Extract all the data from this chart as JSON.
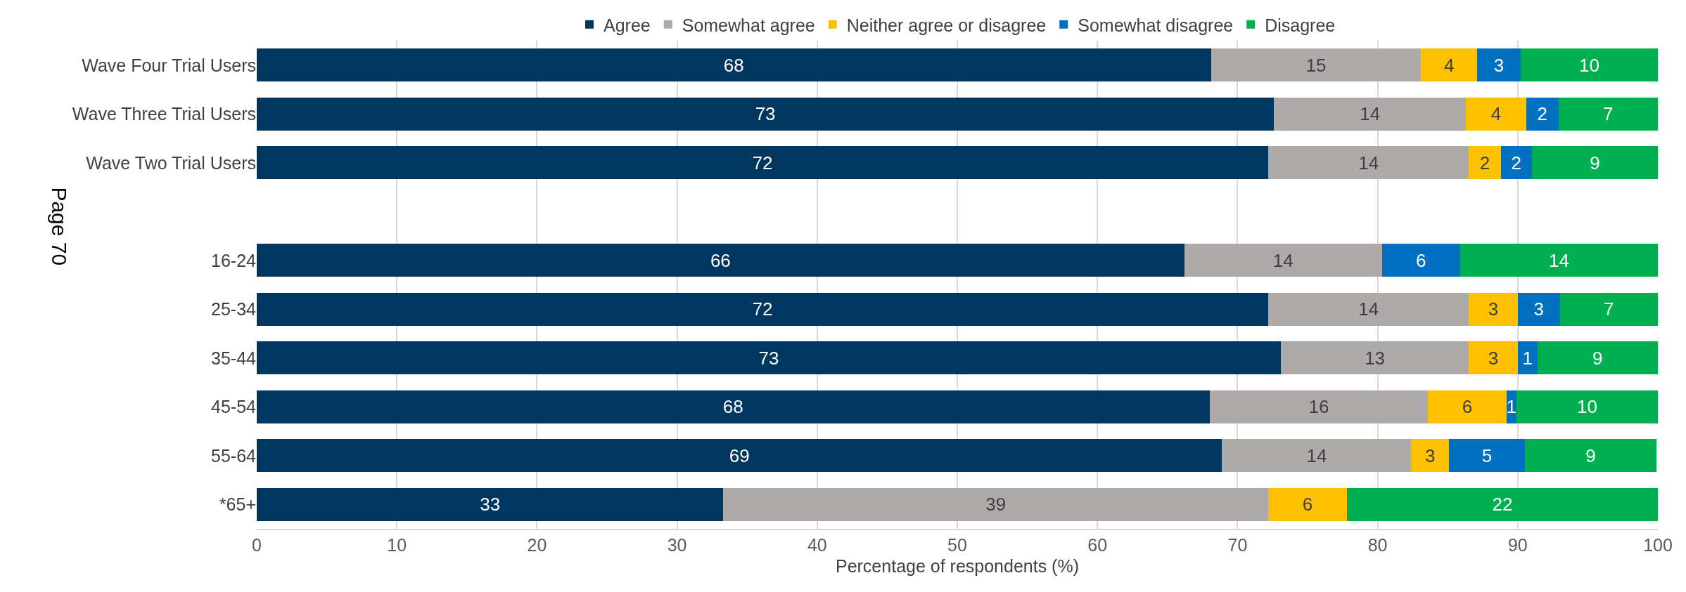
{
  "chart_data": {
    "type": "bar",
    "orientation": "horizontal",
    "stacked": true,
    "categories": [
      "Wave Four Trial Users",
      "Wave Three Trial Users",
      "Wave Two Trial Users",
      null,
      "16-24",
      "25-34",
      "35-44",
      "45-54",
      "55-64",
      "*65+"
    ],
    "series": [
      {
        "name": "Agree",
        "color": "#003761",
        "values": [
          68.1,
          72.6,
          72.2,
          null,
          66.2,
          72.2,
          73.1,
          68.0,
          68.9,
          33.3
        ],
        "value_labels": [
          "68",
          "73",
          "72",
          null,
          "66",
          "72",
          "73",
          "68",
          "69",
          "33"
        ]
      },
      {
        "name": "Somewhat agree",
        "color": "#aeaaaa",
        "values": [
          15.0,
          13.7,
          14.3,
          null,
          14.1,
          14.3,
          13.4,
          15.6,
          13.5,
          38.9
        ],
        "value_labels": [
          "15",
          "14",
          "14",
          null,
          "14",
          "14",
          "13",
          "16",
          "14",
          "39"
        ]
      },
      {
        "name": "Neither agree or disagree",
        "color": "#ffc000",
        "values": [
          4.0,
          4.3,
          2.3,
          null,
          null,
          3.5,
          3.5,
          5.6,
          2.7,
          5.6
        ],
        "value_labels": [
          "4",
          "4",
          "2",
          null,
          null,
          "3",
          "3",
          "6",
          "3",
          "6"
        ]
      },
      {
        "name": "Somewhat disagree",
        "color": "#0070c0",
        "values": [
          3.1,
          2.3,
          2.2,
          null,
          5.6,
          3.0,
          1.4,
          0.7,
          5.4,
          null
        ],
        "value_labels": [
          "3",
          "2",
          "2",
          null,
          "6",
          "3",
          "1",
          "1",
          "5",
          null
        ]
      },
      {
        "name": "Disagree",
        "color": "#00b050",
        "values": [
          9.8,
          7.1,
          9.0,
          null,
          14.1,
          7.0,
          8.6,
          10.1,
          9.4,
          22.2
        ],
        "value_labels": [
          "10",
          "7",
          "9",
          null,
          "14",
          "7",
          "9",
          "10",
          "9",
          "22"
        ]
      }
    ],
    "xlim": [
      0,
      100
    ],
    "xticks": [
      0,
      10,
      20,
      30,
      40,
      50,
      60,
      70,
      80,
      90,
      100
    ],
    "xlabel": "Percentage of respondents (%)",
    "grid": "x",
    "legend": "top",
    "annotations": [
      "Page 70"
    ]
  }
}
